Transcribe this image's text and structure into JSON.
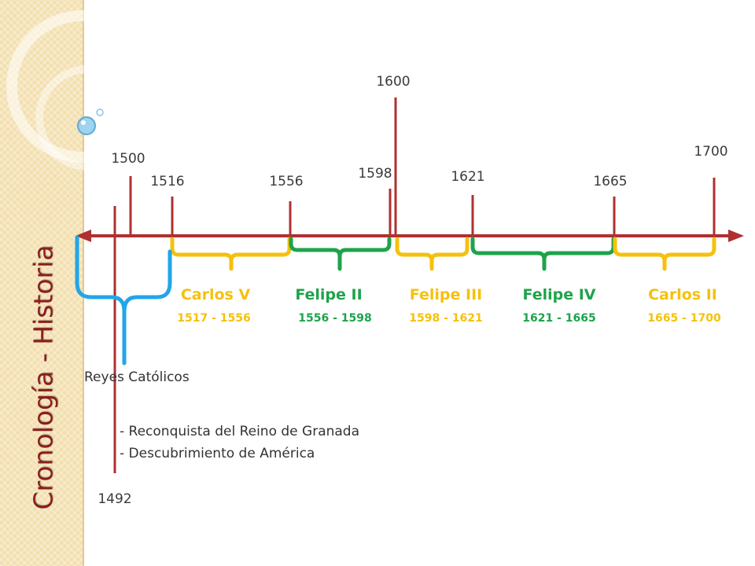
{
  "slide": {
    "title": "Cronología - Historia"
  },
  "colors": {
    "axis": "#b03030",
    "sidebar": "#f3dfae",
    "title": "#8b1e1e",
    "yellow": "#f5c10e",
    "green": "#1ea34b",
    "blue": "#22a6e8"
  },
  "timeline": {
    "year_markers": [
      {
        "id": "1492",
        "label": "1492"
      },
      {
        "id": "1500",
        "label": "1500"
      },
      {
        "id": "1516",
        "label": "1516"
      },
      {
        "id": "1556",
        "label": "1556"
      },
      {
        "id": "1598",
        "label": "1598"
      },
      {
        "id": "1600",
        "label": "1600"
      },
      {
        "id": "1621",
        "label": "1621"
      },
      {
        "id": "1665",
        "label": "1665"
      },
      {
        "id": "1700",
        "label": "1700"
      }
    ],
    "reigns": [
      {
        "id": "carlos-v",
        "name": "Carlos V",
        "range": "1517 - 1556",
        "color": "#f5c10e"
      },
      {
        "id": "felipe-ii",
        "name": "Felipe II",
        "range": "1556 - 1598",
        "color": "#1ea34b"
      },
      {
        "id": "felipe-iii",
        "name": "Felipe III",
        "range": "1598 - 1621",
        "color": "#f5c10e"
      },
      {
        "id": "felipe-iv",
        "name": "Felipe IV",
        "range": "1621 - 1665",
        "color": "#1ea34b"
      },
      {
        "id": "carlos-ii",
        "name": "Carlos II",
        "range": "1665 - 1700",
        "color": "#f5c10e"
      }
    ],
    "catholic_monarchs": {
      "label": "Reyes Católicos",
      "events": [
        "- Reconquista del Reino de Granada",
        "- Descubrimiento de América"
      ],
      "color": "#22a6e8"
    }
  }
}
